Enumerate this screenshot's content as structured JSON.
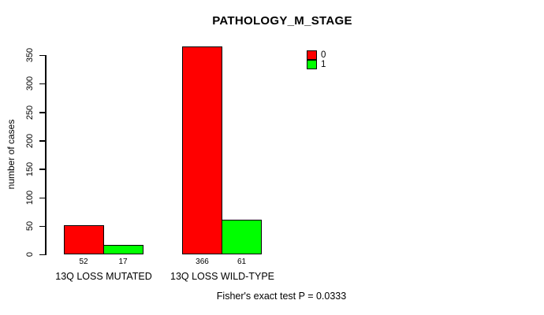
{
  "chart_data": {
    "type": "bar",
    "title": "PATHOLOGY_M_STAGE",
    "ylabel": "number of cases",
    "xlabel": "",
    "categories": [
      "13Q LOSS MUTATED",
      "13Q LOSS WILD-TYPE"
    ],
    "series": [
      {
        "name": "0",
        "color": "#ff0000",
        "values": [
          52,
          366
        ]
      },
      {
        "name": "1",
        "color": "#00ff00",
        "values": [
          17,
          61
        ]
      }
    ],
    "ylim": [
      0,
      350
    ],
    "yticks": [
      0,
      50,
      100,
      150,
      200,
      250,
      300,
      350
    ],
    "bar_value_labels": [
      [
        52,
        366
      ],
      [
        17,
        61
      ]
    ],
    "legend_position": "top-right",
    "legend_entries": [
      "0",
      "1"
    ],
    "grid": false,
    "annotation": "Fisher's exact test P = 0.0333"
  }
}
